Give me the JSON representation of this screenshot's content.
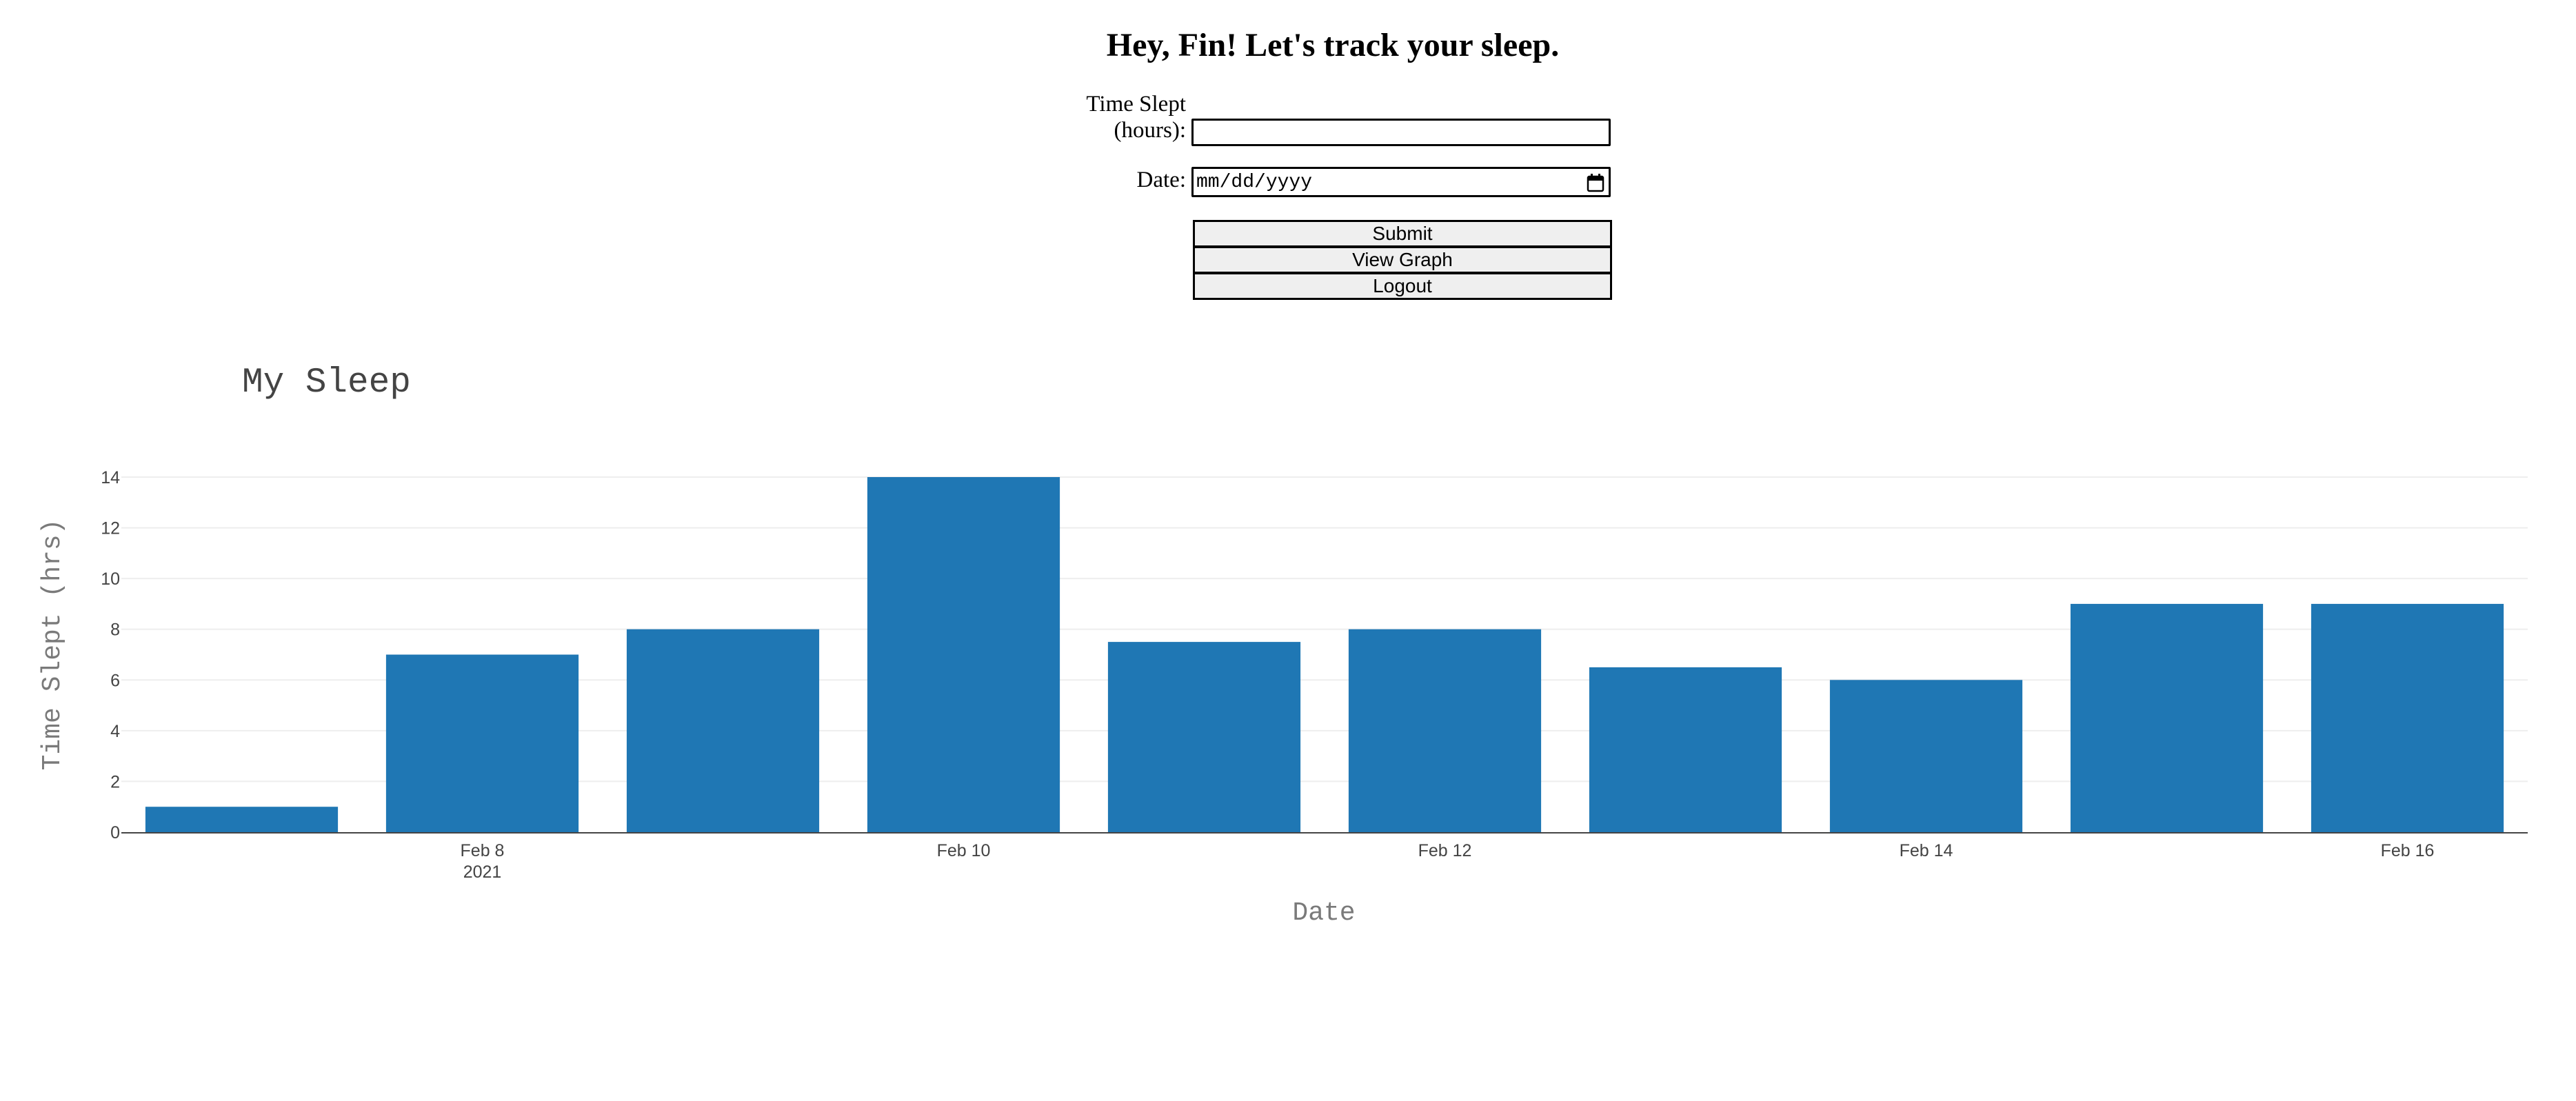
{
  "header": {
    "title": "Hey, Fin! Let's track your sleep."
  },
  "form": {
    "hours_label_line1": "Time Slept",
    "hours_label_line2": "(hours):",
    "hours_value": "",
    "date_label": "Date:",
    "date_placeholder": "mm/dd/yyyy",
    "submit_label": "Submit",
    "view_graph_label": "View Graph",
    "logout_label": "Logout"
  },
  "icons": {
    "date_picker": "calendar-icon"
  },
  "colors": {
    "bar": "#1f77b4",
    "gridline": "#eeeeee",
    "axis_line": "#444444"
  },
  "chart_data": {
    "type": "bar",
    "title": "My Sleep",
    "xlabel": "Date",
    "ylabel": "Time Slept (hrs)",
    "x": [
      "2021-02-07",
      "2021-02-08",
      "2021-02-09",
      "2021-02-10",
      "2021-02-11",
      "2021-02-12",
      "2021-02-13",
      "2021-02-14",
      "2021-02-15",
      "2021-02-16"
    ],
    "values": [
      1,
      7,
      8,
      14,
      7.5,
      8,
      6.5,
      6,
      9,
      9
    ],
    "ylim": [
      0,
      14
    ],
    "xlim": [
      "2021-02-06 12:00",
      "2021-02-16 12:00"
    ],
    "yticks": [
      0,
      2,
      4,
      6,
      8,
      10,
      12,
      14
    ],
    "xticks": [
      {
        "date": "2021-02-08",
        "label": "Feb 8",
        "sublabel": "2021"
      },
      {
        "date": "2021-02-10",
        "label": "Feb 10",
        "sublabel": ""
      },
      {
        "date": "2021-02-12",
        "label": "Feb 12",
        "sublabel": ""
      },
      {
        "date": "2021-02-14",
        "label": "Feb 14",
        "sublabel": ""
      },
      {
        "date": "2021-02-16",
        "label": "Feb 16",
        "sublabel": ""
      }
    ],
    "grid": true,
    "legend": false
  }
}
